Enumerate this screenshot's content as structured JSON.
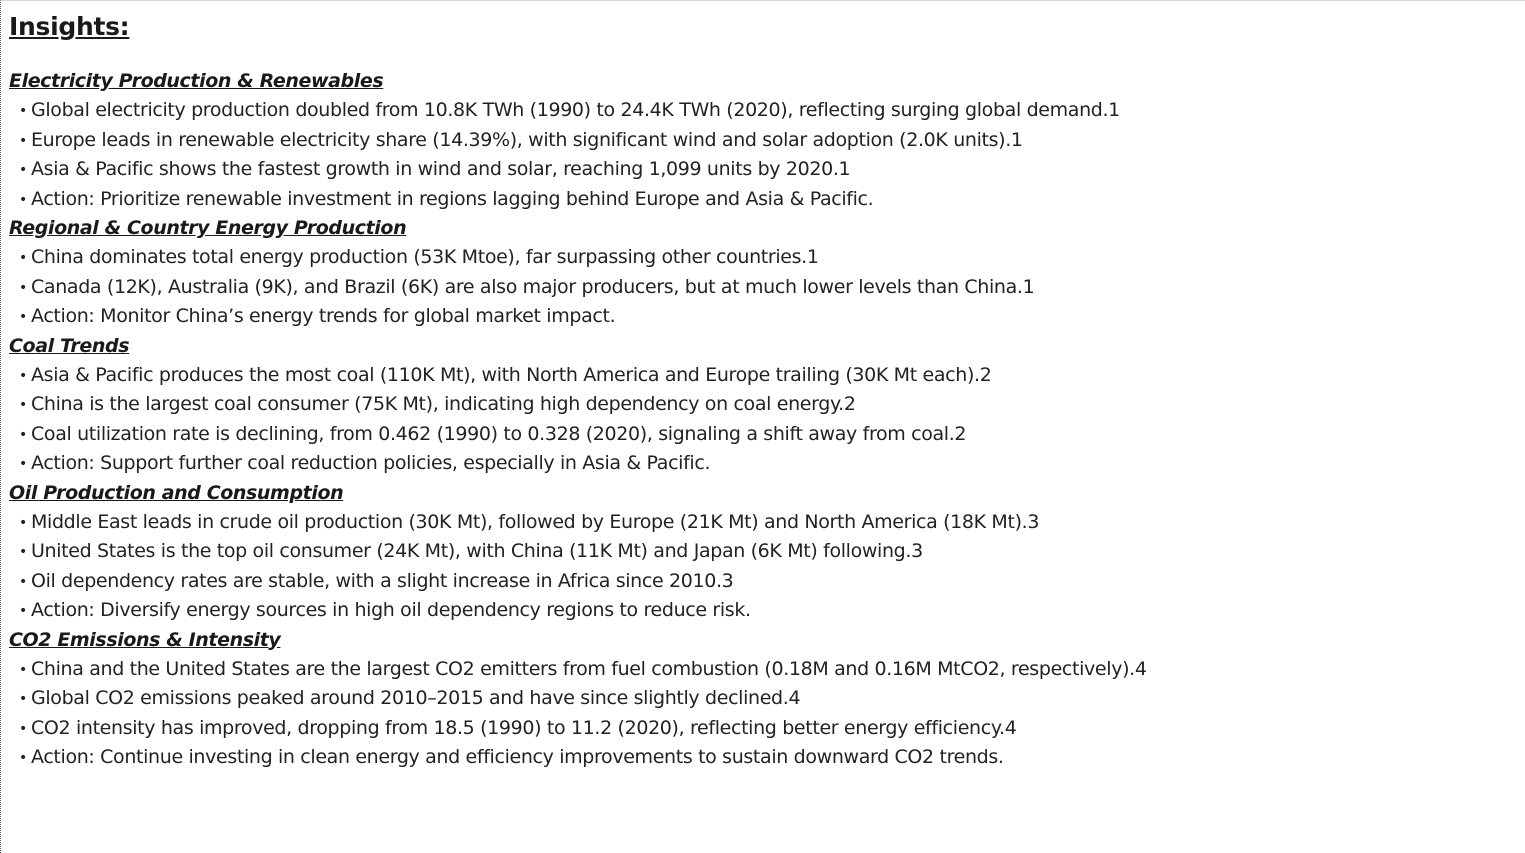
{
  "title": "Insights:",
  "sections": [
    {
      "heading": "Electricity Production & Renewables",
      "bullets": [
        "Global electricity production doubled from 10.8K TWh (1990) to 24.4K TWh (2020), reflecting surging global demand.1",
        "Europe leads in renewable electricity share (14.39%), with significant wind and solar adoption (2.0K units).1",
        "Asia & Pacific shows the fastest growth in wind and solar, reaching 1,099 units by 2020.1",
        "Action: Prioritize renewable investment in regions lagging behind Europe and Asia & Pacific."
      ]
    },
    {
      "heading": "Regional & Country Energy Production",
      "bullets": [
        "China dominates total energy production (53K Mtoe), far surpassing other countries.1",
        "Canada (12K), Australia (9K), and Brazil (6K) are also major producers, but at much lower levels than China.1",
        "Action: Monitor China’s energy trends for global market impact."
      ]
    },
    {
      "heading": "Coal Trends",
      "bullets": [
        "Asia & Pacific produces the most coal (110K Mt), with North America and Europe trailing (30K Mt each).2",
        "China is the largest coal consumer (75K Mt), indicating high dependency on coal energy.2",
        "Coal utilization rate is declining, from 0.462 (1990) to 0.328 (2020), signaling a shift away from coal.2",
        "Action: Support further coal reduction policies, especially in Asia & Pacific."
      ]
    },
    {
      "heading": "Oil Production and Consumption",
      "bullets": [
        "Middle East leads in crude oil production (30K Mt), followed by Europe (21K Mt) and North America (18K Mt).3",
        "United States is the top oil consumer (24K Mt), with China (11K Mt) and Japan (6K Mt) following.3",
        "Oil dependency rates are stable, with a slight increase in Africa since 2010.3",
        "Action: Diversify energy sources in high oil dependency regions to reduce risk."
      ]
    },
    {
      "heading": "CO2 Emissions & Intensity",
      "bullets": [
        "China and the United States are the largest CO2 emitters from fuel combustion (0.18M and 0.16M MtCO2, respectively).4",
        "Global CO2 emissions peaked around 2010–2015 and have since slightly declined.4",
        "CO2 intensity has improved, dropping from 18.5 (1990) to 11.2 (2020), reflecting better energy efficiency.4",
        "Action: Continue investing in clean energy and efficiency improvements to sustain downward CO2 trends."
      ]
    }
  ],
  "bullet_glyph": "•"
}
